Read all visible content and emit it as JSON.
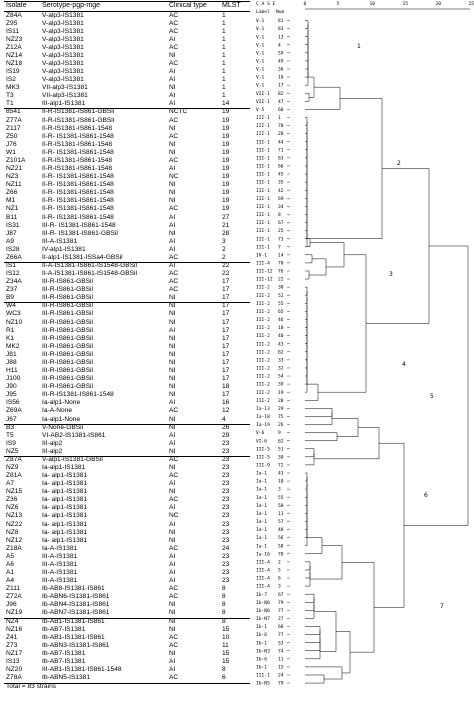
{
  "table": {
    "headers": {
      "isolate": "Isolate",
      "serotype": "Serotype-pgp-mge",
      "clinical": "Clinical type",
      "mlst": "MLST"
    },
    "total": "Total = 83 strains",
    "group_breaks_after": [
      12,
      31,
      36,
      51,
      55,
      75
    ],
    "rows": [
      {
        "iso": "Z84A",
        "ser": "V-alp3-IS1381",
        "cli": "AC",
        "mlst": "1"
      },
      {
        "iso": "Z95",
        "ser": "V-alp3-IS1381",
        "cli": "AC",
        "mlst": "1"
      },
      {
        "iso": "IS11",
        "ser": "V-alp3-IS1381",
        "cli": "AC",
        "mlst": "1"
      },
      {
        "iso": "NZ23",
        "ser": "V-alp3-IS1381",
        "cli": "AI",
        "mlst": "1"
      },
      {
        "iso": "Z12A",
        "ser": "V-alp3-IS1381",
        "cli": "AC",
        "mlst": "1"
      },
      {
        "iso": "NZ14",
        "ser": "V-alp3-IS1381",
        "cli": "NI",
        "mlst": "1"
      },
      {
        "iso": "NZ18",
        "ser": "V-alp3-IS1381",
        "cli": "AC",
        "mlst": "1"
      },
      {
        "iso": "IS19",
        "ser": "V-alp3-IS1381",
        "cli": "AI",
        "mlst": "1"
      },
      {
        "iso": "IS2",
        "ser": "V-alp3-IS1381",
        "cli": "AI",
        "mlst": "1"
      },
      {
        "iso": "MK3",
        "ser": "VII-alp3-IS1381",
        "cli": "NI",
        "mlst": "1"
      },
      {
        "iso": "T3",
        "ser": "VII-alp3-IS1381",
        "cli": "AI",
        "mlst": "1"
      },
      {
        "iso": "T1",
        "ser": "III-alp1-IS1381",
        "cli": "AI",
        "mlst": "14"
      },
      {
        "iso": "8541",
        "ser": "II-R-IS1381-IS861-GBSil",
        "cli": "NCTC",
        "mlst": "19"
      },
      {
        "iso": "Z77A",
        "ser": "II-R-IS1381-IS861-GBSil",
        "cli": "AC",
        "mlst": "19"
      },
      {
        "iso": "Z117",
        "ser": "II-R-IS1381-IS861-1548",
        "cli": "NI",
        "mlst": "19"
      },
      {
        "iso": "Z50",
        "ser": "II-R- IS1381-IS861-1548",
        "cli": "AC",
        "mlst": "19"
      },
      {
        "iso": "J76",
        "ser": "II-R-IS1381-IS861-1548",
        "cli": "NI",
        "mlst": "19"
      },
      {
        "iso": "W1",
        "ser": "II-R- IS1381-IS861-1548",
        "cli": "NI",
        "mlst": "19"
      },
      {
        "iso": "Z101A",
        "ser": "II-R-IS1381-IS861-1548",
        "cli": "AC",
        "mlst": "19"
      },
      {
        "iso": "NZ21",
        "ser": "II-R-IS1381-IS861-1548",
        "cli": "AI",
        "mlst": "19"
      },
      {
        "iso": "NZ3",
        "ser": "II-R- IS1381-IS861-1548",
        "cli": "NC",
        "mlst": "19"
      },
      {
        "iso": "NZ11",
        "ser": "II-R- IS1381-IS861-1548",
        "cli": "NI",
        "mlst": "19"
      },
      {
        "iso": "Z66",
        "ser": "II-R- IS1381-IS861-1548",
        "cli": "NI",
        "mlst": "19"
      },
      {
        "iso": "M1",
        "ser": "II-R- IS1381-IS861-1548",
        "cli": "NI",
        "mlst": "19"
      },
      {
        "iso": "NZ1",
        "ser": "II-R- IS1381-IS861-1548",
        "cli": "AC",
        "mlst": "19"
      },
      {
        "iso": "B11",
        "ser": "II-R- IS1381-IS861-1548",
        "cli": "AI",
        "mlst": "27"
      },
      {
        "iso": "IS31",
        "ser": "III-R- IS1381-IS861-1548",
        "cli": "AI",
        "mlst": "21"
      },
      {
        "iso": "J87",
        "ser": "III-R- IS1381-IS861-GBSil",
        "cli": "NI",
        "mlst": "28"
      },
      {
        "iso": "A9",
        "ser": "III-A-IS1381",
        "cli": "AI",
        "mlst": "3"
      },
      {
        "iso": "IS28",
        "ser": "IV-alp1-IS1381",
        "cli": "AI",
        "mlst": "2"
      },
      {
        "iso": "Z66A",
        "ser": "II-alp1-IS1381-ISSa4-GBSil",
        "cli": "AC",
        "mlst": "2"
      },
      {
        "iso": "IS1",
        "ser": "II-A-IS1381-IS861-IS1548-GBSil",
        "cli": "AI",
        "mlst": "22"
      },
      {
        "iso": "IS12",
        "ser": "II-A-IS1381-IS861-IS1548-GBSil",
        "cli": "AC",
        "mlst": "22"
      },
      {
        "iso": "Z34A",
        "ser": "III-R-IS861-GBSil",
        "cli": "AC",
        "mlst": "17"
      },
      {
        "iso": "Z37",
        "ser": "III-R-IS861-GBSil",
        "cli": "AC",
        "mlst": "17"
      },
      {
        "iso": "B9",
        "ser": "III-R-IS861-GBSil",
        "cli": "NI",
        "mlst": "17"
      },
      {
        "iso": "W4",
        "ser": "III-R-IS861-GBSil",
        "cli": "NI",
        "mlst": "17"
      },
      {
        "iso": "WC3",
        "ser": "III-R-IS861-GBSil",
        "cli": "NI",
        "mlst": "17"
      },
      {
        "iso": "NZ10",
        "ser": "III-R-IS861-GBSil",
        "cli": "NI",
        "mlst": "17"
      },
      {
        "iso": "R1",
        "ser": "III-R-IS861-GBSil",
        "cli": "AI",
        "mlst": "17"
      },
      {
        "iso": "K1",
        "ser": "III-R-IS861-GBSil",
        "cli": "NI",
        "mlst": "17"
      },
      {
        "iso": "MK2",
        "ser": "III-R-IS861-GBSil",
        "cli": "NI",
        "mlst": "17"
      },
      {
        "iso": "J81",
        "ser": "III-R-IS861-GBSil",
        "cli": "NI",
        "mlst": "17"
      },
      {
        "iso": "J88",
        "ser": "III-R-IS861-GBSil",
        "cli": "NI",
        "mlst": "17"
      },
      {
        "iso": "H11",
        "ser": "III-R-IS861-GBSil",
        "cli": "NI",
        "mlst": "17"
      },
      {
        "iso": "J100",
        "ser": "III-R-IS861-GBSil",
        "cli": "NI",
        "mlst": "17"
      },
      {
        "iso": "J90",
        "ser": "III-R-IS861-GBSil",
        "cli": "NI",
        "mlst": "18"
      },
      {
        "iso": "J95",
        "ser": "III-R-IS1381-IS861-1548",
        "cli": "NI",
        "mlst": "17"
      },
      {
        "iso": "IS56",
        "ser": "Ia-alp1-None",
        "cli": "AI",
        "mlst": "16"
      },
      {
        "iso": "Z69A",
        "ser": "Ia-A-None",
        "cli": "AC",
        "mlst": "12"
      },
      {
        "iso": "J67",
        "ser": "Ia-alp1-None",
        "cli": "NI",
        "mlst": "4"
      },
      {
        "iso": "B3",
        "ser": "V-None-GBSil",
        "cli": "NI",
        "mlst": "26"
      },
      {
        "iso": "T5",
        "ser": "VI-AB2-IS1381-IS861",
        "cli": "AI",
        "mlst": "29"
      },
      {
        "iso": "IS9",
        "ser": "III-alp2",
        "cli": "AI",
        "mlst": "23"
      },
      {
        "iso": "NZ5",
        "ser": "III-alp2",
        "cli": "NI",
        "mlst": "23"
      },
      {
        "iso": "Z87A",
        "ser": "V-alp1-IS1381-GBSil",
        "cli": "AC",
        "mlst": "23"
      },
      {
        "iso": "NZ9",
        "ser": "Ia-alp1-IS1381",
        "cli": "NI",
        "mlst": "23"
      },
      {
        "iso": "Z81A",
        "ser": "Ia- alp1-IS1381",
        "cli": "AC",
        "mlst": "23"
      },
      {
        "iso": "A7",
        "ser": "Ia- alp1-IS1381",
        "cli": "AI",
        "mlst": "23"
      },
      {
        "iso": "NZ15",
        "ser": "Ia- alp1-IS1381",
        "cli": "NI",
        "mlst": "23"
      },
      {
        "iso": "Z36",
        "ser": "Ia- alp1-IS1381",
        "cli": "AC",
        "mlst": "23"
      },
      {
        "iso": "NZ6",
        "ser": "Ia- alp1-IS1381",
        "cli": "AI",
        "mlst": "23"
      },
      {
        "iso": "NZ13",
        "ser": "Ia- alp1-IS1381",
        "cli": "NC",
        "mlst": "23"
      },
      {
        "iso": "NZ22",
        "ser": "Ia- alp1-IS1381",
        "cli": "AI",
        "mlst": "23"
      },
      {
        "iso": "NZ8",
        "ser": "Ia- alp1-IS1381",
        "cli": "NI",
        "mlst": "23"
      },
      {
        "iso": "NZ12",
        "ser": "Ia- alp1-IS1381",
        "cli": "NI",
        "mlst": "23"
      },
      {
        "iso": "Z18A",
        "ser": "Ia-A-IS1381",
        "cli": "AC",
        "mlst": "24"
      },
      {
        "iso": "A5",
        "ser": "III-A-IS1381",
        "cli": "AI",
        "mlst": "23"
      },
      {
        "iso": "A6",
        "ser": "III-A-IS1381",
        "cli": "AI",
        "mlst": "23"
      },
      {
        "iso": "A1",
        "ser": "III-A-IS1381",
        "cli": "AI",
        "mlst": "23"
      },
      {
        "iso": "A4",
        "ser": "III-A-IS1381",
        "cli": "AI",
        "mlst": "23"
      },
      {
        "iso": "Z111",
        "ser": "Ib-AB8-IS1381-IS861",
        "cli": "AC",
        "mlst": "8"
      },
      {
        "iso": "Z72A",
        "ser": "Ib-ABN6-IS1381-IS861",
        "cli": "AC",
        "mlst": "8"
      },
      {
        "iso": "J96",
        "ser": "Ib-ABN4-IS1381-IS861",
        "cli": "NI",
        "mlst": "8"
      },
      {
        "iso": "NZ19",
        "ser": "Ib-ABN7-IS1381-IS861",
        "cli": "NI",
        "mlst": "8"
      },
      {
        "iso": "NZ4",
        "ser": "Ib-AB1-IS1381-IS861",
        "cli": "NI",
        "mlst": "8"
      },
      {
        "iso": "NZ16",
        "ser": "Ib-AB7-IS1381",
        "cli": "NI",
        "mlst": "15"
      },
      {
        "iso": "Z41",
        "ser": "Ib-AB1-IS1381-IS861",
        "cli": "AC",
        "mlst": "10"
      },
      {
        "iso": "Z73",
        "ser": "Ib-ABN3-IS1381-IS861",
        "cli": "AC",
        "mlst": "11"
      },
      {
        "iso": "NZ17",
        "ser": "Ib-AB7-IS1381",
        "cli": "NI",
        "mlst": "15"
      },
      {
        "iso": "IS13",
        "ser": "Ib-AB7-IS1381",
        "cli": "AI",
        "mlst": "15"
      },
      {
        "iso": "NZ20",
        "ser": "III-AB1-IS1381-IS861-1548",
        "cli": "AI",
        "mlst": "8"
      },
      {
        "iso": "Z78A",
        "ser": "Ib-ABN5-IS1381",
        "cli": "AC",
        "mlst": "6"
      }
    ]
  },
  "dendrogram": {
    "header": {
      "case_label": "C A S E",
      "label_col": "Label",
      "num_col": "Num"
    },
    "scale_ticks": [
      "0",
      "5",
      "10",
      "15",
      "20",
      "25"
    ],
    "cluster_labels": [
      "1",
      "2",
      "3",
      "4",
      "5",
      "6",
      "7"
    ],
    "leaves": [
      {
        "label": "V-1",
        "num": "81"
      },
      {
        "label": "V-1",
        "num": "83"
      },
      {
        "label": "V-1",
        "num": "13"
      },
      {
        "label": "V-1",
        "num": "4"
      },
      {
        "label": "V-1",
        "num": "59"
      },
      {
        "label": "V-1",
        "num": "49"
      },
      {
        "label": "V-1",
        "num": "36"
      },
      {
        "label": "V-1",
        "num": "16"
      },
      {
        "label": "V-1",
        "num": "17"
      },
      {
        "label": "VII-1",
        "num": "82"
      },
      {
        "label": "VII-1",
        "num": "47"
      },
      {
        "label": "V-5",
        "num": "60"
      },
      {
        "label": "III-1",
        "num": "1"
      },
      {
        "label": "III-1",
        "num": "78"
      },
      {
        "label": "III-1",
        "num": "28"
      },
      {
        "label": "III-1",
        "num": "44"
      },
      {
        "label": "III-1",
        "num": "71"
      },
      {
        "label": "III-1",
        "num": "63"
      },
      {
        "label": "III-1",
        "num": "66"
      },
      {
        "label": "III-1",
        "num": "45"
      },
      {
        "label": "III-1",
        "num": "35"
      },
      {
        "label": "III-1",
        "num": "42"
      },
      {
        "label": "III-1",
        "num": "69"
      },
      {
        "label": "III-1",
        "num": "34"
      },
      {
        "label": "III-1",
        "num": "8"
      },
      {
        "label": "III-1",
        "num": "67"
      },
      {
        "label": "III-1",
        "num": "25"
      },
      {
        "label": "III-1",
        "num": "73"
      },
      {
        "label": "III-1",
        "num": "7"
      },
      {
        "label": "IV-1",
        "num": "14"
      },
      {
        "label": "III-4",
        "num": "70"
      },
      {
        "label": "III-12",
        "num": "76"
      },
      {
        "label": "III-12",
        "num": "22"
      },
      {
        "label": "III-2",
        "num": "38"
      },
      {
        "label": "III-2",
        "num": "52"
      },
      {
        "label": "III-2",
        "num": "55"
      },
      {
        "label": "III-2",
        "num": "65"
      },
      {
        "label": "III-2",
        "num": "46"
      },
      {
        "label": "III-2",
        "num": "18"
      },
      {
        "label": "III-2",
        "num": "40"
      },
      {
        "label": "III-2",
        "num": "43"
      },
      {
        "label": "III-2",
        "num": "62"
      },
      {
        "label": "III-2",
        "num": "33"
      },
      {
        "label": "III-2",
        "num": "32"
      },
      {
        "label": "III-2",
        "num": "54"
      },
      {
        "label": "III-2",
        "num": "39"
      },
      {
        "label": "III-2",
        "num": "19"
      },
      {
        "label": "III-2",
        "num": "20"
      },
      {
        "label": "Ia-13",
        "num": "29"
      },
      {
        "label": "Ia-18",
        "num": "75"
      },
      {
        "label": "Ia-19",
        "num": "26"
      },
      {
        "label": "V-6",
        "num": "9"
      },
      {
        "label": "VI-6",
        "num": "62"
      },
      {
        "label": "III-5",
        "num": "51"
      },
      {
        "label": "III-5",
        "num": "30"
      },
      {
        "label": "III-9",
        "num": "72"
      },
      {
        "label": "Ia-1",
        "num": "41"
      },
      {
        "label": "Ia-1",
        "num": "10"
      },
      {
        "label": "Ia-1",
        "num": "3"
      },
      {
        "label": "Ia-1",
        "num": "55"
      },
      {
        "label": "Ia-1",
        "num": "50"
      },
      {
        "label": "Ia-1",
        "num": "11"
      },
      {
        "label": "Ia-1",
        "num": "57"
      },
      {
        "label": "Ia-1",
        "num": "48"
      },
      {
        "label": "Ia-1",
        "num": "56"
      },
      {
        "label": "Ia-1",
        "num": "58"
      },
      {
        "label": "Ia-16",
        "num": "70"
      },
      {
        "label": "III-4",
        "num": "2"
      },
      {
        "label": "III-4",
        "num": "5"
      },
      {
        "label": "III-4",
        "num": "6"
      },
      {
        "label": "III-4",
        "num": "3"
      },
      {
        "label": "Ib-7",
        "num": "67"
      },
      {
        "label": "Ib-N6",
        "num": "79"
      },
      {
        "label": "Ib-N6",
        "num": "77"
      },
      {
        "label": "Ib-N7",
        "num": "27"
      },
      {
        "label": "Ib-1",
        "num": "68"
      },
      {
        "label": "Ib-6",
        "num": "77"
      },
      {
        "label": "Ib-1",
        "num": "53"
      },
      {
        "label": "Ib-N3",
        "num": "74"
      },
      {
        "label": "Ib-6",
        "num": "11"
      },
      {
        "label": "Ib-1",
        "num": "15"
      },
      {
        "label": "III-1",
        "num": "24"
      },
      {
        "label": "Ib-N5",
        "num": "79"
      }
    ]
  }
}
